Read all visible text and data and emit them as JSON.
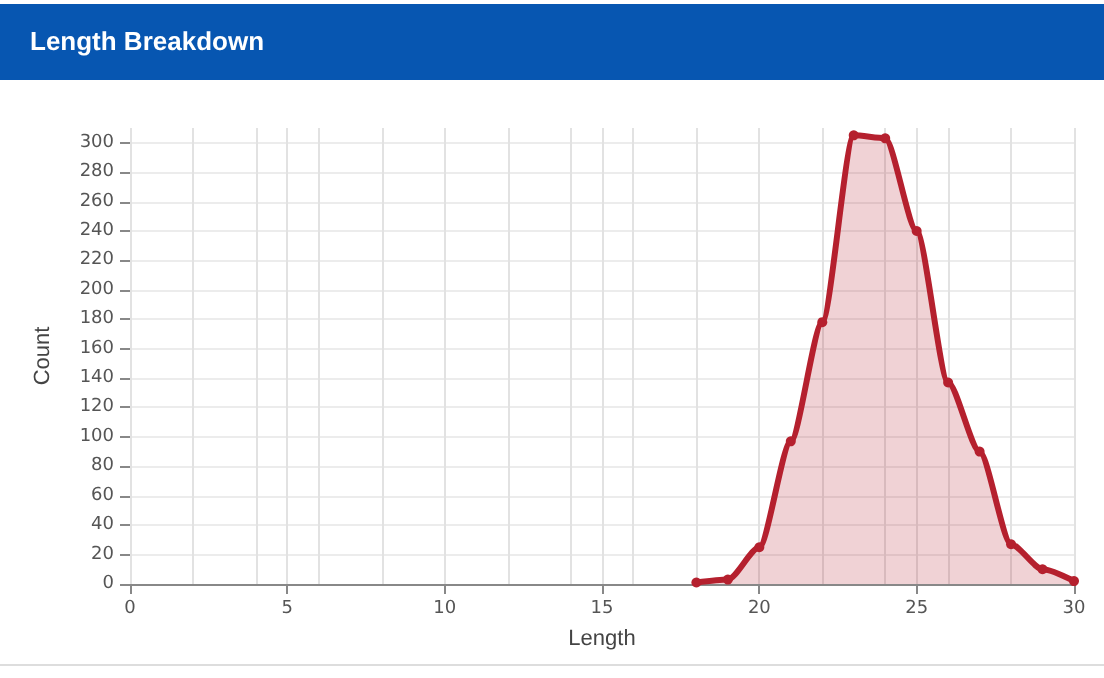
{
  "chart_data": {
    "type": "area",
    "title": "Length Breakdown",
    "xlabel": "Length",
    "ylabel": "Count",
    "x": [
      18,
      19,
      20,
      21,
      22,
      23,
      24,
      25,
      26,
      27,
      28,
      29,
      30
    ],
    "series": [
      {
        "color": "#b5202e",
        "values": [
          1,
          3,
          25,
          97,
          178,
          305,
          303,
          240,
          137,
          90,
          27,
          10,
          2
        ]
      }
    ],
    "xlim": [
      0,
      30
    ],
    "xticks": [
      0,
      {
        "value": 2,
        "label": null
      },
      {
        "value": 4,
        "label": null
      },
      5,
      {
        "value": 6,
        "label": null
      },
      {
        "value": 8,
        "label": null
      },
      10,
      {
        "value": 12,
        "label": null
      },
      {
        "value": 14,
        "label": null
      },
      15,
      {
        "value": 16,
        "label": null
      },
      {
        "value": 18,
        "label": null
      },
      20,
      {
        "value": 22,
        "label": null
      },
      {
        "value": 24,
        "label": null
      },
      25,
      {
        "value": 26,
        "label": null
      },
      {
        "value": 28,
        "label": null
      },
      30
    ],
    "ylim": [
      0,
      310
    ],
    "yticks": [
      0,
      20,
      40,
      60,
      80,
      100,
      120,
      140,
      160,
      180,
      200,
      220,
      240,
      260,
      280,
      300
    ],
    "grid": true,
    "marker": "circle"
  }
}
